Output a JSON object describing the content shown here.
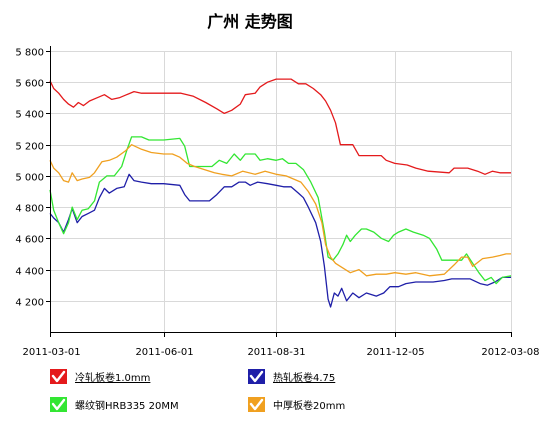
{
  "chart_data": {
    "type": "line",
    "title": "广州 走势图",
    "xlabel": "",
    "ylabel": "",
    "ylim": [
      4000,
      5800
    ],
    "y_ticks": [
      4200,
      4400,
      4600,
      4800,
      5000,
      5200,
      5400,
      5600,
      5800
    ],
    "y_tick_labels": [
      "4 200",
      "4 400",
      "4 600",
      "4 800",
      "5 000",
      "5 200",
      "5 400",
      "5 600",
      "5 800"
    ],
    "xlim": [
      "2011-03-01",
      "2012-03-08"
    ],
    "x_ticks": [
      "2011-03-01",
      "2011-06-01",
      "2011-08-31",
      "2011-12-05",
      "2012-03-08"
    ],
    "grid": true,
    "legend_position": "bottom",
    "series": [
      {
        "name": "冷轧板卷1.0mm",
        "color": "#e41a1c",
        "underlined": true,
        "points": [
          [
            "2011-03-01",
            5610
          ],
          [
            "2011-03-04",
            5560
          ],
          [
            "2011-03-08",
            5530
          ],
          [
            "2011-03-12",
            5490
          ],
          [
            "2011-03-16",
            5460
          ],
          [
            "2011-03-20",
            5440
          ],
          [
            "2011-03-24",
            5470
          ],
          [
            "2011-03-28",
            5450
          ],
          [
            "2011-04-02",
            5480
          ],
          [
            "2011-04-08",
            5500
          ],
          [
            "2011-04-14",
            5520
          ],
          [
            "2011-04-20",
            5490
          ],
          [
            "2011-04-26",
            5500
          ],
          [
            "2011-05-02",
            5520
          ],
          [
            "2011-05-08",
            5540
          ],
          [
            "2011-05-14",
            5530
          ],
          [
            "2011-06-01",
            5530
          ],
          [
            "2011-06-15",
            5530
          ],
          [
            "2011-06-25",
            5510
          ],
          [
            "2011-07-05",
            5470
          ],
          [
            "2011-07-14",
            5430
          ],
          [
            "2011-07-20",
            5400
          ],
          [
            "2011-07-26",
            5420
          ],
          [
            "2011-08-02",
            5460
          ],
          [
            "2011-08-06",
            5520
          ],
          [
            "2011-08-14",
            5530
          ],
          [
            "2011-08-18",
            5570
          ],
          [
            "2011-08-24",
            5600
          ],
          [
            "2011-08-31",
            5620
          ],
          [
            "2011-09-12",
            5620
          ],
          [
            "2011-09-18",
            5590
          ],
          [
            "2011-09-24",
            5590
          ],
          [
            "2011-09-30",
            5560
          ],
          [
            "2011-10-06",
            5520
          ],
          [
            "2011-10-10",
            5480
          ],
          [
            "2011-10-14",
            5420
          ],
          [
            "2011-10-18",
            5340
          ],
          [
            "2011-10-22",
            5200
          ],
          [
            "2011-11-01",
            5200
          ],
          [
            "2011-11-06",
            5130
          ],
          [
            "2011-11-16",
            5130
          ],
          [
            "2011-11-24",
            5130
          ],
          [
            "2011-11-28",
            5100
          ],
          [
            "2011-12-05",
            5080
          ],
          [
            "2011-12-15",
            5070
          ],
          [
            "2011-12-22",
            5050
          ],
          [
            "2012-01-01",
            5030
          ],
          [
            "2012-01-18",
            5020
          ],
          [
            "2012-01-22",
            5050
          ],
          [
            "2012-02-02",
            5050
          ],
          [
            "2012-02-10",
            5030
          ],
          [
            "2012-02-16",
            5010
          ],
          [
            "2012-02-22",
            5030
          ],
          [
            "2012-02-28",
            5020
          ],
          [
            "2012-03-08",
            5020
          ]
        ]
      },
      {
        "name": "热轧板卷4.75",
        "color": "#1f1fa8",
        "underlined": true,
        "points": [
          [
            "2011-03-01",
            4760
          ],
          [
            "2011-03-04",
            4730
          ],
          [
            "2011-03-08",
            4700
          ],
          [
            "2011-03-12",
            4640
          ],
          [
            "2011-03-16",
            4720
          ],
          [
            "2011-03-19",
            4790
          ],
          [
            "2011-03-23",
            4700
          ],
          [
            "2011-03-27",
            4740
          ],
          [
            "2011-04-01",
            4760
          ],
          [
            "2011-04-06",
            4780
          ],
          [
            "2011-04-10",
            4860
          ],
          [
            "2011-04-14",
            4920
          ],
          [
            "2011-04-18",
            4890
          ],
          [
            "2011-04-24",
            4920
          ],
          [
            "2011-04-30",
            4930
          ],
          [
            "2011-05-04",
            5010
          ],
          [
            "2011-05-08",
            4970
          ],
          [
            "2011-05-14",
            4960
          ],
          [
            "2011-05-22",
            4950
          ],
          [
            "2011-06-01",
            4950
          ],
          [
            "2011-06-14",
            4940
          ],
          [
            "2011-06-18",
            4880
          ],
          [
            "2011-06-22",
            4840
          ],
          [
            "2011-07-08",
            4840
          ],
          [
            "2011-07-14",
            4880
          ],
          [
            "2011-07-20",
            4930
          ],
          [
            "2011-07-26",
            4930
          ],
          [
            "2011-08-01",
            4960
          ],
          [
            "2011-08-06",
            4960
          ],
          [
            "2011-08-10",
            4940
          ],
          [
            "2011-08-16",
            4960
          ],
          [
            "2011-08-24",
            4950
          ],
          [
            "2011-08-31",
            4940
          ],
          [
            "2011-09-06",
            4930
          ],
          [
            "2011-09-12",
            4930
          ],
          [
            "2011-09-18",
            4890
          ],
          [
            "2011-09-22",
            4860
          ],
          [
            "2011-09-26",
            4800
          ],
          [
            "2011-10-02",
            4700
          ],
          [
            "2011-10-06",
            4580
          ],
          [
            "2011-10-09",
            4420
          ],
          [
            "2011-10-12",
            4210
          ],
          [
            "2011-10-14",
            4160
          ],
          [
            "2011-10-17",
            4250
          ],
          [
            "2011-10-20",
            4230
          ],
          [
            "2011-10-23",
            4280
          ],
          [
            "2011-10-27",
            4200
          ],
          [
            "2011-11-01",
            4250
          ],
          [
            "2011-11-06",
            4220
          ],
          [
            "2011-11-12",
            4250
          ],
          [
            "2011-11-20",
            4230
          ],
          [
            "2011-11-26",
            4250
          ],
          [
            "2011-12-01",
            4290
          ],
          [
            "2011-12-08",
            4290
          ],
          [
            "2011-12-14",
            4310
          ],
          [
            "2011-12-22",
            4320
          ],
          [
            "2012-01-05",
            4320
          ],
          [
            "2012-01-14",
            4330
          ],
          [
            "2012-01-20",
            4340
          ],
          [
            "2012-02-04",
            4340
          ],
          [
            "2012-02-12",
            4310
          ],
          [
            "2012-02-18",
            4300
          ],
          [
            "2012-02-24",
            4320
          ],
          [
            "2012-03-01",
            4350
          ],
          [
            "2012-03-08",
            4350
          ]
        ]
      },
      {
        "name": "螺纹钢HRB335 20MM",
        "color": "#33e633",
        "underlined": false,
        "points": [
          [
            "2011-03-01",
            4910
          ],
          [
            "2011-03-04",
            4780
          ],
          [
            "2011-03-08",
            4700
          ],
          [
            "2011-03-12",
            4630
          ],
          [
            "2011-03-16",
            4700
          ],
          [
            "2011-03-19",
            4800
          ],
          [
            "2011-03-23",
            4720
          ],
          [
            "2011-03-27",
            4780
          ],
          [
            "2011-04-01",
            4790
          ],
          [
            "2011-04-06",
            4840
          ],
          [
            "2011-04-10",
            4960
          ],
          [
            "2011-04-16",
            5000
          ],
          [
            "2011-04-22",
            5000
          ],
          [
            "2011-04-28",
            5060
          ],
          [
            "2011-05-02",
            5160
          ],
          [
            "2011-05-06",
            5250
          ],
          [
            "2011-05-14",
            5250
          ],
          [
            "2011-05-20",
            5230
          ],
          [
            "2011-06-01",
            5230
          ],
          [
            "2011-06-14",
            5240
          ],
          [
            "2011-06-18",
            5190
          ],
          [
            "2011-06-22",
            5060
          ],
          [
            "2011-07-10",
            5060
          ],
          [
            "2011-07-16",
            5100
          ],
          [
            "2011-07-22",
            5080
          ],
          [
            "2011-07-28",
            5140
          ],
          [
            "2011-08-02",
            5100
          ],
          [
            "2011-08-06",
            5140
          ],
          [
            "2011-08-14",
            5140
          ],
          [
            "2011-08-18",
            5100
          ],
          [
            "2011-08-24",
            5110
          ],
          [
            "2011-08-31",
            5100
          ],
          [
            "2011-09-05",
            5110
          ],
          [
            "2011-09-10",
            5080
          ],
          [
            "2011-09-16",
            5080
          ],
          [
            "2011-09-22",
            5040
          ],
          [
            "2011-09-28",
            4960
          ],
          [
            "2011-10-04",
            4860
          ],
          [
            "2011-10-09",
            4640
          ],
          [
            "2011-10-12",
            4480
          ],
          [
            "2011-10-16",
            4460
          ],
          [
            "2011-10-20",
            4500
          ],
          [
            "2011-10-24",
            4560
          ],
          [
            "2011-10-27",
            4620
          ],
          [
            "2011-10-30",
            4580
          ],
          [
            "2011-11-03",
            4620
          ],
          [
            "2011-11-08",
            4660
          ],
          [
            "2011-11-12",
            4660
          ],
          [
            "2011-11-18",
            4640
          ],
          [
            "2011-11-24",
            4600
          ],
          [
            "2011-11-30",
            4580
          ],
          [
            "2011-12-04",
            4620
          ],
          [
            "2011-12-08",
            4640
          ],
          [
            "2011-12-14",
            4660
          ],
          [
            "2011-12-20",
            4640
          ],
          [
            "2011-12-28",
            4620
          ],
          [
            "2012-01-02",
            4600
          ],
          [
            "2012-01-08",
            4530
          ],
          [
            "2012-01-12",
            4460
          ],
          [
            "2012-01-28",
            4460
          ],
          [
            "2012-02-01",
            4500
          ],
          [
            "2012-02-06",
            4440
          ],
          [
            "2012-02-11",
            4380
          ],
          [
            "2012-02-16",
            4330
          ],
          [
            "2012-02-21",
            4350
          ],
          [
            "2012-02-25",
            4310
          ],
          [
            "2012-03-01",
            4350
          ],
          [
            "2012-03-08",
            4360
          ]
        ]
      },
      {
        "name": "中厚板卷20mm",
        "color": "#f0a020",
        "underlined": false,
        "points": [
          [
            "2011-03-01",
            5100
          ],
          [
            "2011-03-04",
            5050
          ],
          [
            "2011-03-08",
            5020
          ],
          [
            "2011-03-12",
            4970
          ],
          [
            "2011-03-16",
            4960
          ],
          [
            "2011-03-19",
            5020
          ],
          [
            "2011-03-23",
            4970
          ],
          [
            "2011-03-27",
            4980
          ],
          [
            "2011-04-02",
            4990
          ],
          [
            "2011-04-06",
            5020
          ],
          [
            "2011-04-12",
            5090
          ],
          [
            "2011-04-18",
            5100
          ],
          [
            "2011-04-24",
            5120
          ],
          [
            "2011-05-01",
            5160
          ],
          [
            "2011-05-06",
            5200
          ],
          [
            "2011-05-14",
            5170
          ],
          [
            "2011-05-22",
            5150
          ],
          [
            "2011-06-01",
            5140
          ],
          [
            "2011-06-08",
            5140
          ],
          [
            "2011-06-14",
            5120
          ],
          [
            "2011-06-20",
            5080
          ],
          [
            "2011-06-26",
            5060
          ],
          [
            "2011-07-04",
            5040
          ],
          [
            "2011-07-12",
            5020
          ],
          [
            "2011-07-18",
            5010
          ],
          [
            "2011-07-26",
            5000
          ],
          [
            "2011-08-04",
            5030
          ],
          [
            "2011-08-14",
            5010
          ],
          [
            "2011-08-22",
            5030
          ],
          [
            "2011-08-31",
            5010
          ],
          [
            "2011-09-08",
            5000
          ],
          [
            "2011-09-14",
            4980
          ],
          [
            "2011-09-20",
            4960
          ],
          [
            "2011-09-26",
            4900
          ],
          [
            "2011-10-02",
            4820
          ],
          [
            "2011-10-07",
            4700
          ],
          [
            "2011-10-10",
            4560
          ],
          [
            "2011-10-14",
            4480
          ],
          [
            "2011-10-18",
            4440
          ],
          [
            "2011-10-22",
            4420
          ],
          [
            "2011-10-30",
            4380
          ],
          [
            "2011-11-06",
            4400
          ],
          [
            "2011-11-12",
            4360
          ],
          [
            "2011-11-20",
            4370
          ],
          [
            "2011-11-28",
            4370
          ],
          [
            "2011-12-05",
            4380
          ],
          [
            "2011-12-14",
            4370
          ],
          [
            "2011-12-22",
            4380
          ],
          [
            "2012-01-02",
            4360
          ],
          [
            "2012-01-14",
            4370
          ],
          [
            "2012-01-22",
            4430
          ],
          [
            "2012-01-28",
            4480
          ],
          [
            "2012-02-02",
            4480
          ],
          [
            "2012-02-06",
            4420
          ],
          [
            "2012-02-14",
            4470
          ],
          [
            "2012-02-22",
            4480
          ],
          [
            "2012-02-28",
            4490
          ],
          [
            "2012-03-04",
            4500
          ],
          [
            "2012-03-08",
            4500
          ]
        ]
      }
    ]
  }
}
